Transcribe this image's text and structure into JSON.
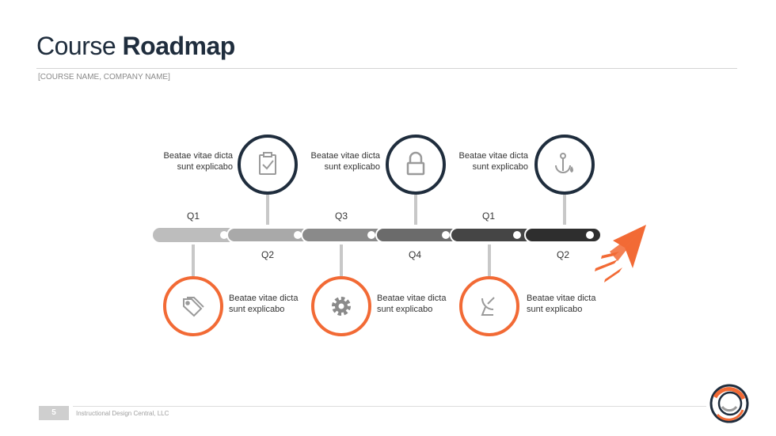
{
  "header": {
    "title_light": "Course",
    "title_bold": "Roadmap",
    "subtitle": "[COURSE NAME, COMPANY NAME]"
  },
  "milestones": {
    "top": [
      {
        "caption_line1": "Beatae vitae dicta",
        "caption_line2": "sunt explicabo",
        "icon": "clipboard-check-icon"
      },
      {
        "caption_line1": "Beatae vitae dicta",
        "caption_line2": "sunt explicabo",
        "icon": "lock-icon"
      },
      {
        "caption_line1": "Beatae vitae dicta",
        "caption_line2": "sunt explicabo",
        "icon": "anchor-drop-icon"
      }
    ],
    "bottom": [
      {
        "caption_line1": "Beatae vitae dicta",
        "caption_line2": "sunt explicabo",
        "icon": "tags-icon"
      },
      {
        "caption_line1": "Beatae vitae dicta",
        "caption_line2": "sunt explicabo",
        "icon": "gear-icon"
      },
      {
        "caption_line1": "Beatae vitae dicta",
        "caption_line2": "sunt explicabo",
        "icon": "satellite-dish-icon"
      }
    ]
  },
  "quarters": {
    "top": [
      "Q1",
      "Q3",
      "Q1"
    ],
    "bottom": [
      "Q2",
      "Q4",
      "Q2"
    ]
  },
  "colors": {
    "navy": "#1f2d3d",
    "orange": "#f26a35",
    "segments": [
      "#bdbdbd",
      "#a9a9a9",
      "#8a8a8a",
      "#6b6b6b",
      "#454545",
      "#2e2e2e"
    ]
  },
  "footer": {
    "page_number": "5",
    "company": "Instructional Design Central, LLC"
  }
}
